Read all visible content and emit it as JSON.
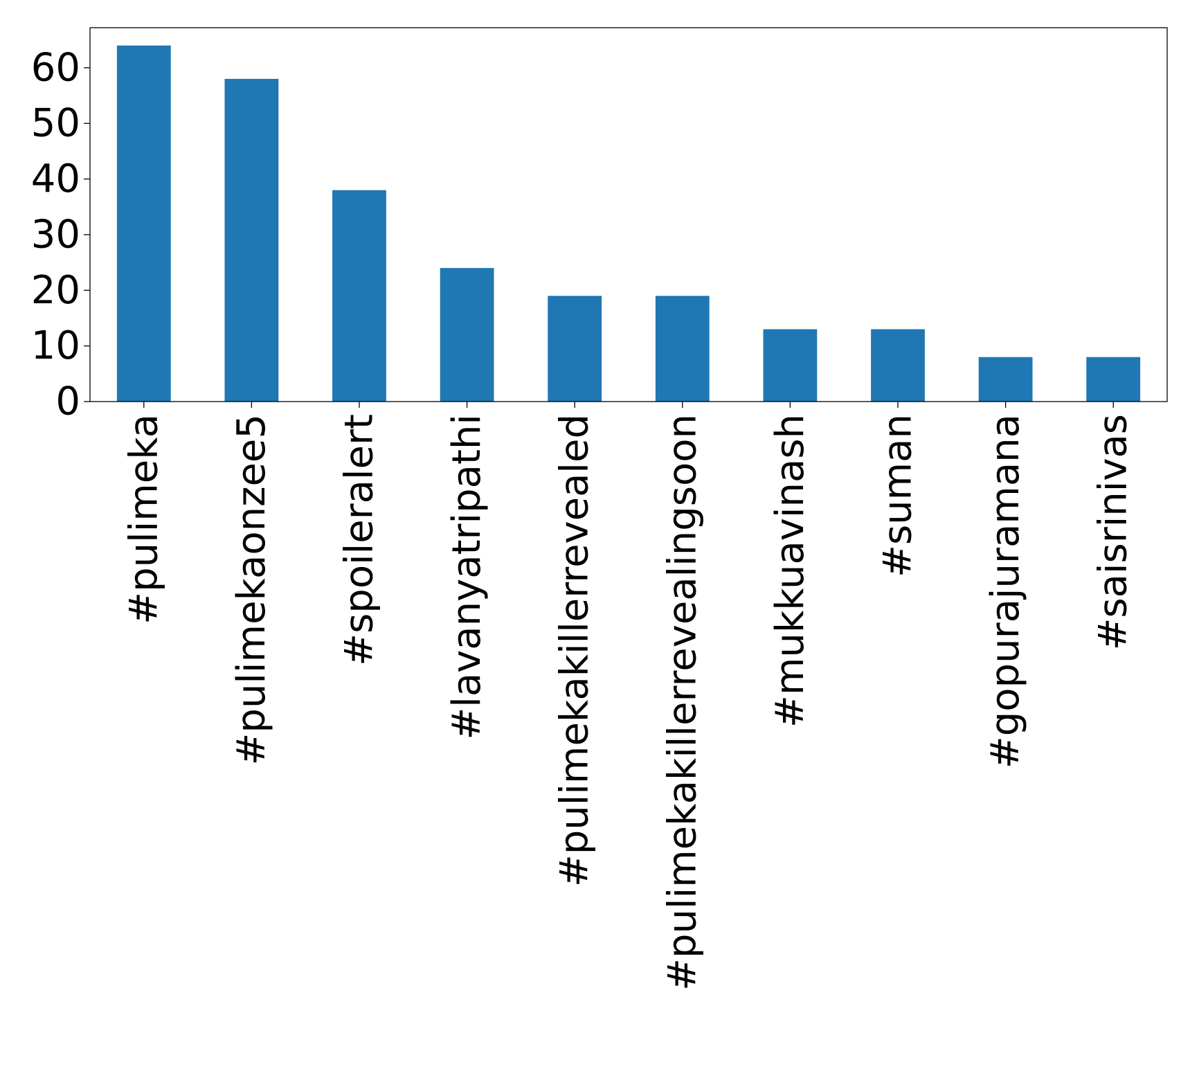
{
  "chart_data": {
    "type": "bar",
    "title": "",
    "xlabel": "",
    "ylabel": "",
    "categories": [
      "#pulimeka",
      "#pulimekaonzee5",
      "#spoileralert",
      "#lavanyatripathi",
      "#pulimekakillerrevealed",
      "#pulimekakillerrevealingsoon",
      "#mukkuavinash",
      "#suman",
      "#gopurajuramana",
      "#saisrinivas"
    ],
    "values": [
      64,
      58,
      38,
      24,
      19,
      19,
      13,
      13,
      8,
      8
    ],
    "ylim": [
      0,
      67.2
    ],
    "yticks": [
      0,
      10,
      20,
      30,
      40,
      50,
      60
    ],
    "grid": false,
    "legend": "none",
    "bar_color": "#1f77b4"
  }
}
